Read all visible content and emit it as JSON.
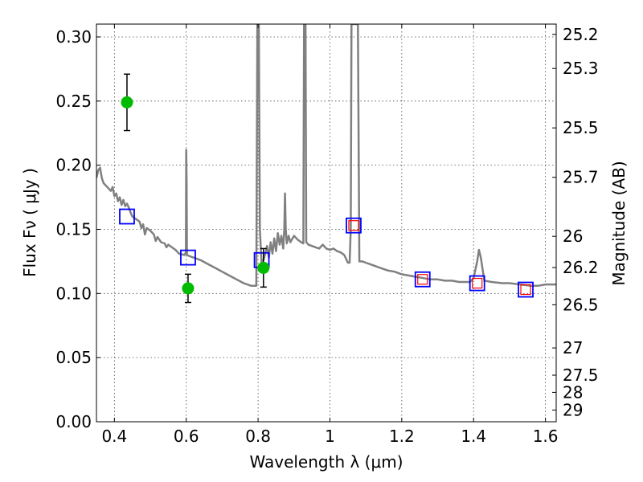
{
  "chart_data": {
    "type": "scatter",
    "xlabel": "Wavelength λ (μm)",
    "ylabel": "Flux Fν ( μJy )",
    "y2label": "Magnitude (AB)",
    "xlim": [
      0.35,
      1.63
    ],
    "ylim": [
      0.0,
      0.31
    ],
    "grid": true,
    "x_ticks": [
      0.4,
      0.6,
      0.8,
      1.0,
      1.2,
      1.4,
      1.6
    ],
    "x_tick_labels": [
      "0.4",
      "0.6",
      "0.8",
      "1",
      "1.2",
      "1.4",
      "1.6"
    ],
    "y_ticks": [
      0.0,
      0.05,
      0.1,
      0.15,
      0.2,
      0.25,
      0.3
    ],
    "y_tick_labels": [
      "0.00",
      "0.05",
      "0.10",
      "0.15",
      "0.20",
      "0.25",
      "0.30"
    ],
    "y2_ticks": [
      {
        "mag": 25.2,
        "label": "25.2"
      },
      {
        "mag": 25.3,
        "label": "25.3"
      },
      {
        "mag": 25.5,
        "label": "25.5"
      },
      {
        "mag": 25.7,
        "label": "25.7"
      },
      {
        "mag": 26.0,
        "label": "26"
      },
      {
        "mag": 26.2,
        "label": "26.2"
      },
      {
        "mag": 26.5,
        "label": "26.5"
      },
      {
        "mag": 27.0,
        "label": "27"
      },
      {
        "mag": 27.5,
        "label": "27.5"
      },
      {
        "mag": 28.0,
        "label": "28"
      },
      {
        "mag": 29.0,
        "label": "29"
      }
    ],
    "series": [
      {
        "kind": "line",
        "color": "#808080",
        "points": [
          [
            0.35,
            0.19
          ],
          [
            0.355,
            0.196
          ],
          [
            0.36,
            0.198
          ],
          [
            0.365,
            0.19
          ],
          [
            0.37,
            0.186
          ],
          [
            0.38,
            0.183
          ],
          [
            0.39,
            0.18
          ],
          [
            0.395,
            0.183
          ],
          [
            0.4,
            0.176
          ],
          [
            0.405,
            0.178
          ],
          [
            0.41,
            0.172
          ],
          [
            0.415,
            0.175
          ],
          [
            0.42,
            0.169
          ],
          [
            0.425,
            0.173
          ],
          [
            0.43,
            0.168
          ],
          [
            0.435,
            0.17
          ],
          [
            0.44,
            0.167
          ],
          [
            0.445,
            0.163
          ],
          [
            0.45,
            0.16
          ],
          [
            0.46,
            0.158
          ],
          [
            0.47,
            0.156
          ],
          [
            0.475,
            0.151
          ],
          [
            0.48,
            0.154
          ],
          [
            0.485,
            0.146
          ],
          [
            0.49,
            0.151
          ],
          [
            0.5,
            0.149
          ],
          [
            0.51,
            0.146
          ],
          [
            0.515,
            0.141
          ],
          [
            0.52,
            0.144
          ],
          [
            0.53,
            0.14
          ],
          [
            0.54,
            0.139
          ],
          [
            0.545,
            0.136
          ],
          [
            0.55,
            0.138
          ],
          [
            0.56,
            0.136
          ],
          [
            0.57,
            0.134
          ],
          [
            0.58,
            0.131
          ],
          [
            0.595,
            0.13
          ],
          [
            0.599,
            0.132
          ],
          [
            0.6,
            0.212
          ],
          [
            0.601,
            0.185
          ],
          [
            0.602,
            0.13
          ],
          [
            0.61,
            0.129
          ],
          [
            0.62,
            0.128
          ],
          [
            0.64,
            0.126
          ],
          [
            0.66,
            0.123
          ],
          [
            0.68,
            0.12
          ],
          [
            0.7,
            0.117
          ],
          [
            0.72,
            0.114
          ],
          [
            0.74,
            0.111
          ],
          [
            0.76,
            0.108
          ],
          [
            0.78,
            0.106
          ],
          [
            0.795,
            0.106
          ],
          [
            0.798,
            0.31
          ],
          [
            0.8,
            0.31
          ],
          [
            0.802,
            0.31
          ],
          [
            0.805,
            0.15
          ],
          [
            0.81,
            0.122
          ],
          [
            0.815,
            0.126
          ],
          [
            0.82,
            0.131
          ],
          [
            0.825,
            0.137
          ],
          [
            0.83,
            0.128
          ],
          [
            0.835,
            0.14
          ],
          [
            0.84,
            0.131
          ],
          [
            0.845,
            0.143
          ],
          [
            0.85,
            0.133
          ],
          [
            0.855,
            0.147
          ],
          [
            0.86,
            0.138
          ],
          [
            0.865,
            0.145
          ],
          [
            0.87,
            0.135
          ],
          [
            0.873,
            0.15
          ],
          [
            0.875,
            0.178
          ],
          [
            0.877,
            0.15
          ],
          [
            0.88,
            0.139
          ],
          [
            0.885,
            0.145
          ],
          [
            0.89,
            0.14
          ],
          [
            0.9,
            0.145
          ],
          [
            0.91,
            0.142
          ],
          [
            0.92,
            0.14
          ],
          [
            0.926,
            0.139
          ],
          [
            0.928,
            0.31
          ],
          [
            0.932,
            0.31
          ],
          [
            0.934,
            0.14
          ],
          [
            0.94,
            0.138
          ],
          [
            0.95,
            0.137
          ],
          [
            0.96,
            0.136
          ],
          [
            0.97,
            0.135
          ],
          [
            0.98,
            0.138
          ],
          [
            0.99,
            0.135
          ],
          [
            1.0,
            0.134
          ],
          [
            1.01,
            0.135
          ],
          [
            1.02,
            0.133
          ],
          [
            1.03,
            0.132
          ],
          [
            1.04,
            0.13
          ],
          [
            1.05,
            0.124
          ],
          [
            1.055,
            0.124
          ],
          [
            1.058,
            0.15
          ],
          [
            1.06,
            0.31
          ],
          [
            1.075,
            0.31
          ],
          [
            1.078,
            0.31
          ],
          [
            1.082,
            0.125
          ],
          [
            1.09,
            0.125
          ],
          [
            1.1,
            0.124
          ],
          [
            1.12,
            0.122
          ],
          [
            1.14,
            0.12
          ],
          [
            1.16,
            0.118
          ],
          [
            1.18,
            0.117
          ],
          [
            1.2,
            0.115
          ],
          [
            1.22,
            0.114
          ],
          [
            1.24,
            0.113
          ],
          [
            1.26,
            0.112
          ],
          [
            1.28,
            0.111
          ],
          [
            1.3,
            0.111
          ],
          [
            1.32,
            0.11
          ],
          [
            1.34,
            0.11
          ],
          [
            1.36,
            0.109
          ],
          [
            1.38,
            0.109
          ],
          [
            1.39,
            0.109
          ],
          [
            1.4,
            0.112
          ],
          [
            1.41,
            0.125
          ],
          [
            1.415,
            0.134
          ],
          [
            1.42,
            0.128
          ],
          [
            1.43,
            0.11
          ],
          [
            1.45,
            0.109
          ],
          [
            1.48,
            0.108
          ],
          [
            1.5,
            0.108
          ],
          [
            1.53,
            0.107
          ],
          [
            1.56,
            0.106
          ],
          [
            1.58,
            0.106
          ],
          [
            1.6,
            0.107
          ],
          [
            1.63,
            0.107
          ]
        ]
      },
      {
        "kind": "square-markers",
        "name": "",
        "edgecolor": "#0000ff",
        "points": [
          [
            0.435,
            0.16
          ],
          [
            0.605,
            0.128
          ],
          [
            0.81,
            0.126
          ],
          [
            1.066,
            0.153
          ],
          [
            1.258,
            0.111
          ],
          [
            1.41,
            0.108
          ],
          [
            1.545,
            0.103
          ]
        ]
      },
      {
        "kind": "inner-squares",
        "edgecolor": "#ff0000",
        "points": [
          [
            1.066,
            0.153
          ],
          [
            1.258,
            0.111
          ],
          [
            1.41,
            0.108
          ],
          [
            1.545,
            0.103
          ]
        ]
      },
      {
        "kind": "circle-errorbar",
        "color": "#00bb00",
        "points": [
          {
            "x": 0.435,
            "y": 0.249,
            "err": 0.022
          },
          {
            "x": 0.605,
            "y": 0.104,
            "err": 0.011
          },
          {
            "x": 0.815,
            "y": 0.12,
            "err": 0.015
          }
        ]
      }
    ]
  }
}
